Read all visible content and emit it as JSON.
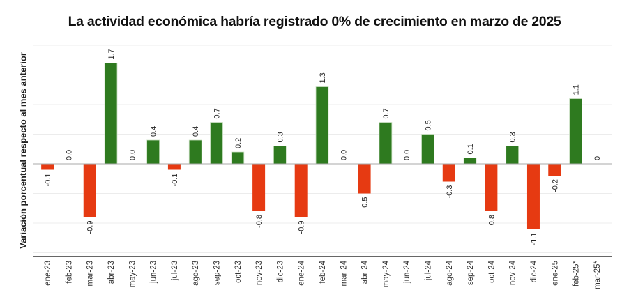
{
  "chart_data": {
    "type": "bar",
    "title": "La actividad económica habría registrado 0% de crecimiento en marzo de 2025",
    "xlabel": "",
    "ylabel": "Variación porcentual respecto al mes anterior",
    "ylim": [
      -1.57,
      2.0
    ],
    "grid": true,
    "categories": [
      "ene-23",
      "feb-23",
      "mar-23",
      "abr-23",
      "may-23",
      "jun-23",
      "jul-23",
      "ago-23",
      "sep-23",
      "oct-23",
      "nov-23",
      "dic-23",
      "ene-24",
      "feb-24",
      "mar-24",
      "abr-24",
      "may-24",
      "jun-24",
      "jul-24",
      "ago-24",
      "sep-24",
      "oct-24",
      "nov-24",
      "dic-24",
      "ene-25",
      "feb-25*",
      "mar-25*"
    ],
    "values": [
      -0.1,
      0.0,
      -0.9,
      1.7,
      0.0,
      0.4,
      -0.1,
      0.4,
      0.7,
      0.2,
      -0.8,
      0.3,
      -0.9,
      1.3,
      0.0,
      -0.5,
      0.7,
      0.0,
      0.5,
      -0.3,
      0.1,
      -0.8,
      0.3,
      -1.1,
      -0.2,
      1.1,
      0
    ],
    "data_labels": [
      "-0.1",
      "0.0",
      "-0.9",
      "1.7",
      "0.0",
      "0.4",
      "-0.1",
      "0.4",
      "0.7",
      "0.2",
      "-0.8",
      "0.3",
      "-0.9",
      "1.3",
      "0.0",
      "-0.5",
      "0.7",
      "0.0",
      "0.5",
      "-0.3",
      "0.1",
      "-0.8",
      "0.3",
      "-1.1",
      "-0.2",
      "1.1",
      "0"
    ],
    "colors": {
      "positive": "#2e7a1f",
      "negative": "#e63a12"
    }
  }
}
